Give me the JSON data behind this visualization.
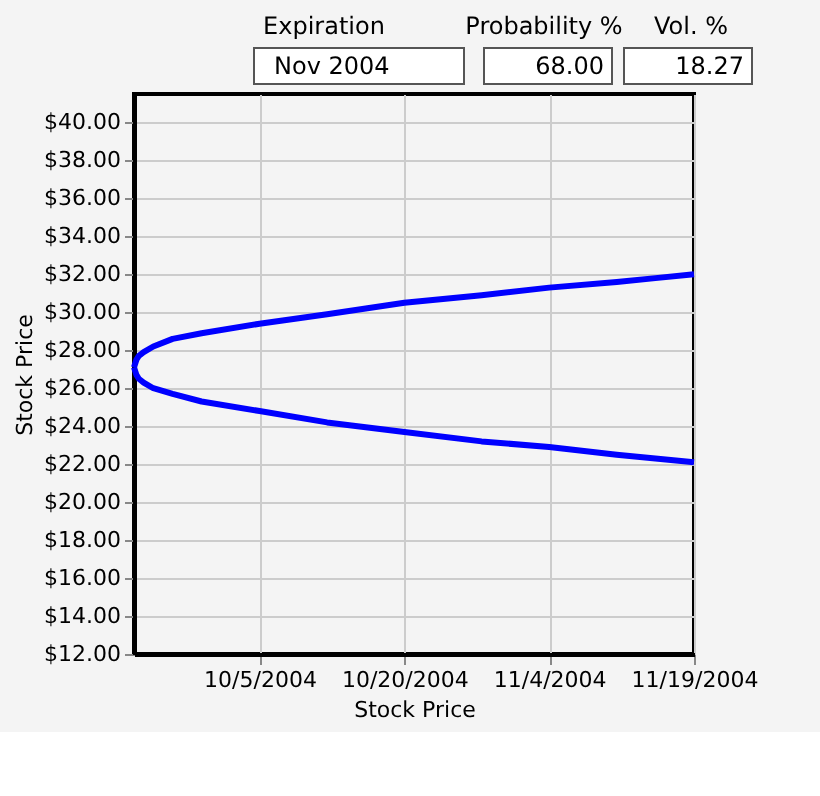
{
  "chart_data": {
    "type": "line",
    "xlabel": "Stock Price",
    "ylabel": "Stock Price",
    "annotations": [
      "Expiration",
      "Nov 2004",
      "Probability %",
      "68.00",
      "Vol. %",
      "18.27"
    ],
    "x": [
      "2004-09-22",
      "2004-09-22T06:00",
      "2004-09-22T12:00",
      "2004-09-23",
      "2004-09-24",
      "2004-09-26",
      "2004-09-29",
      "2004-10-05",
      "2004-10-12",
      "2004-10-20",
      "2004-10-28",
      "2004-11-04",
      "2004-11-11",
      "2004-11-15",
      "2004-11-19"
    ],
    "series": [
      {
        "color": "#0000ff",
        "values": [
          27.1,
          27.5,
          27.7,
          27.9,
          28.2,
          28.6,
          28.9,
          29.4,
          29.9,
          30.5,
          30.9,
          31.3,
          31.6,
          31.8,
          32.0
        ]
      },
      {
        "color": "#0000ff",
        "values": [
          27.1,
          26.7,
          26.5,
          26.3,
          26.0,
          25.7,
          25.3,
          24.8,
          24.2,
          23.7,
          23.2,
          22.9,
          22.5,
          22.3,
          22.1
        ]
      }
    ],
    "xlim": [
      "2004-09-22",
      "2004-11-19"
    ],
    "xticks": [
      {
        "value": "2004-10-05",
        "label": "10/5/2004"
      },
      {
        "value": "2004-10-20",
        "label": "10/20/2004"
      },
      {
        "value": "2004-11-04",
        "label": "11/4/2004"
      },
      {
        "value": "2004-11-19",
        "label": "11/19/2004"
      }
    ],
    "ylim": [
      12,
      41.5
    ],
    "yticks": [
      {
        "value": 12,
        "label": "$12.00"
      },
      {
        "value": 14,
        "label": "$14.00"
      },
      {
        "value": 16,
        "label": "$16.00"
      },
      {
        "value": 18,
        "label": "$18.00"
      },
      {
        "value": 20,
        "label": "$20.00"
      },
      {
        "value": 22,
        "label": "$22.00"
      },
      {
        "value": 24,
        "label": "$24.00"
      },
      {
        "value": 26,
        "label": "$26.00"
      },
      {
        "value": 28,
        "label": "$28.00"
      },
      {
        "value": 30,
        "label": "$30.00"
      },
      {
        "value": 32,
        "label": "$32.00"
      },
      {
        "value": 34,
        "label": "$34.00"
      },
      {
        "value": 36,
        "label": "$36.00"
      },
      {
        "value": 38,
        "label": "$38.00"
      },
      {
        "value": 40,
        "label": "$40.00"
      }
    ],
    "grid": true,
    "line_style": "solid",
    "marker": "none"
  }
}
